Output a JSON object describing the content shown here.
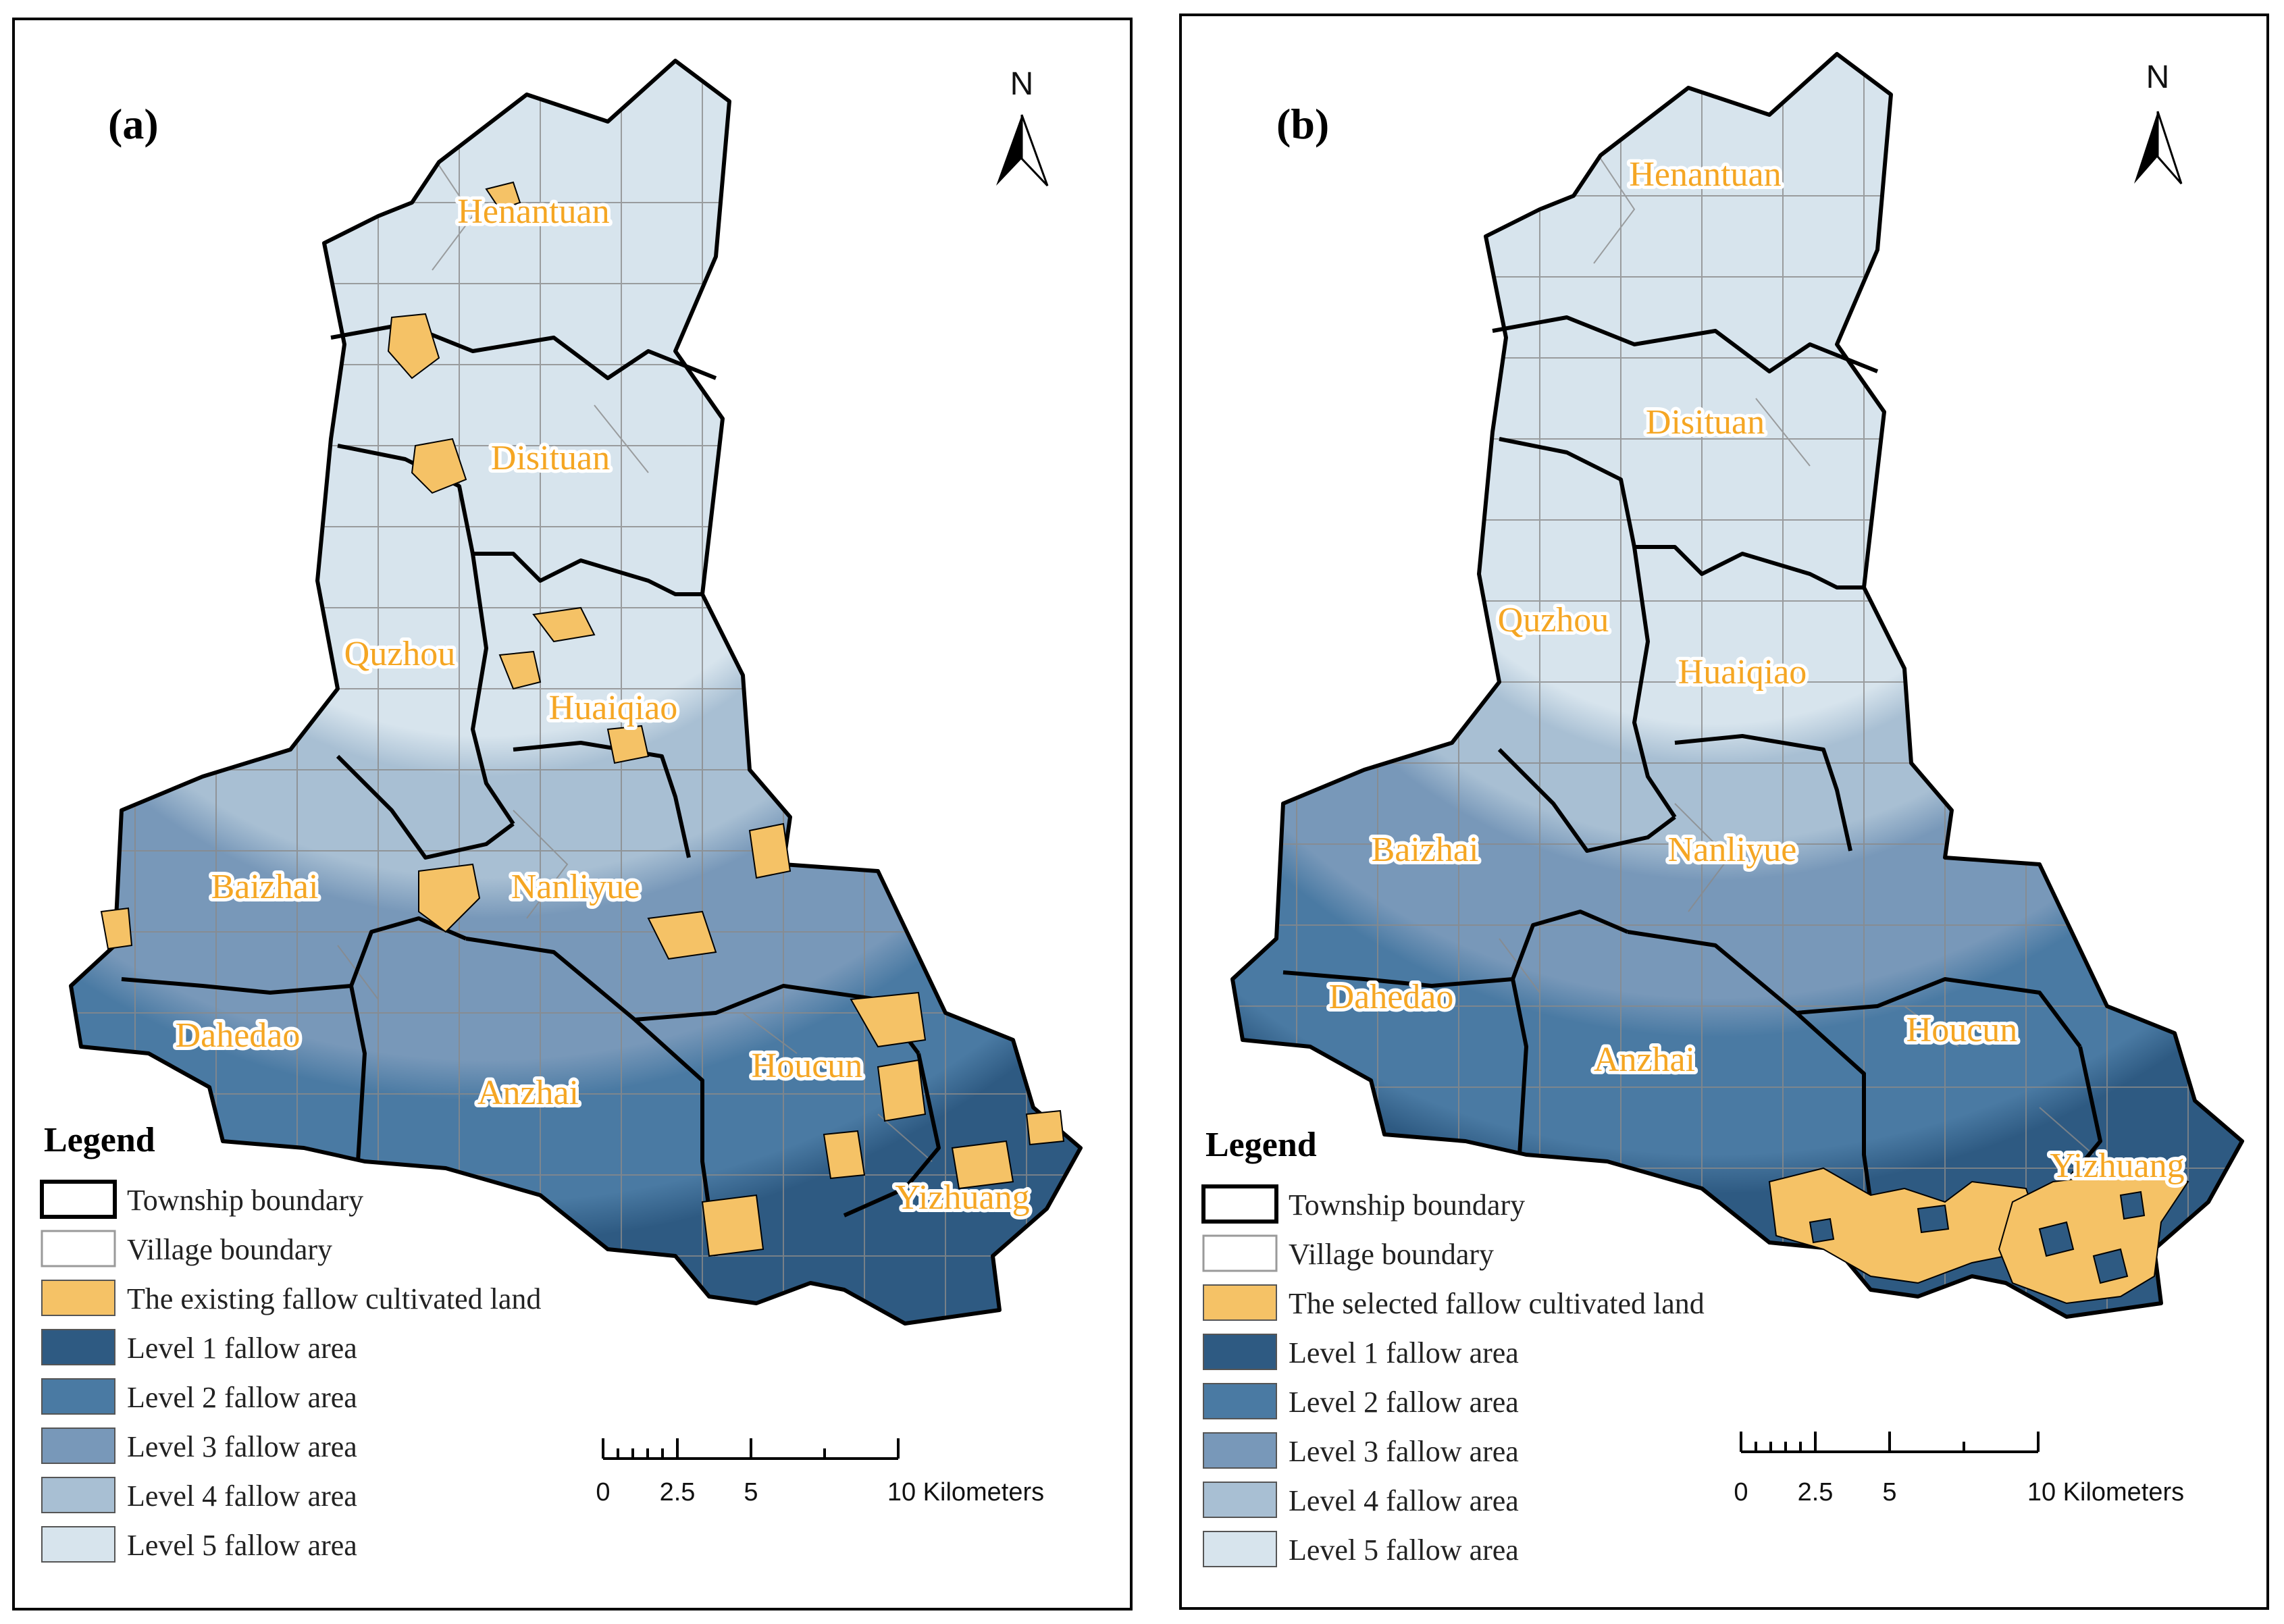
{
  "colors": {
    "level1": "#2e5a82",
    "level2": "#4a7aa3",
    "level3": "#7898b9",
    "level4": "#a8bfd3",
    "level5": "#d7e4ed",
    "fallow": "#f5c266",
    "township_stroke": "#000000",
    "village_stroke": "#7a7a7a"
  },
  "panels": [
    {
      "id": "a",
      "label": "(a)",
      "townships": [
        "Henantuan",
        "Disituan",
        "Quzhou",
        "Huaiqiao",
        "Baizhai",
        "Nanliyue",
        "Dahedao",
        "Anzhai",
        "Houcun",
        "Yizhuang"
      ],
      "legend": {
        "title": "Legend",
        "items": [
          {
            "label": "Township boundary",
            "swatch": "township"
          },
          {
            "label": "Village boundary",
            "swatch": "village"
          },
          {
            "label": "The existing fallow cultivated land",
            "swatch": "fallow"
          },
          {
            "label": "Level 1 fallow area",
            "swatch": "level1"
          },
          {
            "label": "Level 2 fallow area",
            "swatch": "level2"
          },
          {
            "label": "Level 3 fallow area",
            "swatch": "level3"
          },
          {
            "label": "Level 4 fallow area",
            "swatch": "level4"
          },
          {
            "label": "Level 5 fallow area",
            "swatch": "level5"
          }
        ]
      },
      "scale": {
        "ticks": [
          "0",
          "2.5",
          "5",
          "10 Kilometers"
        ]
      },
      "north": "N"
    },
    {
      "id": "b",
      "label": "(b)",
      "townships": [
        "Henantuan",
        "Disituan",
        "Quzhou",
        "Huaiqiao",
        "Baizhai",
        "Nanliyue",
        "Dahedao",
        "Anzhai",
        "Houcun",
        "Yizhuang"
      ],
      "legend": {
        "title": "Legend",
        "items": [
          {
            "label": "Township boundary",
            "swatch": "township"
          },
          {
            "label": "Village boundary",
            "swatch": "village"
          },
          {
            "label": "The selected fallow cultivated land",
            "swatch": "fallow"
          },
          {
            "label": "Level 1 fallow area",
            "swatch": "level1"
          },
          {
            "label": "Level 2 fallow area",
            "swatch": "level2"
          },
          {
            "label": "Level 3 fallow area",
            "swatch": "level3"
          },
          {
            "label": "Level 4 fallow area",
            "swatch": "level4"
          },
          {
            "label": "Level 5 fallow area",
            "swatch": "level5"
          }
        ]
      },
      "scale": {
        "ticks": [
          "0",
          "2.5",
          "5",
          "10 Kilometers"
        ]
      },
      "north": "N"
    }
  ]
}
